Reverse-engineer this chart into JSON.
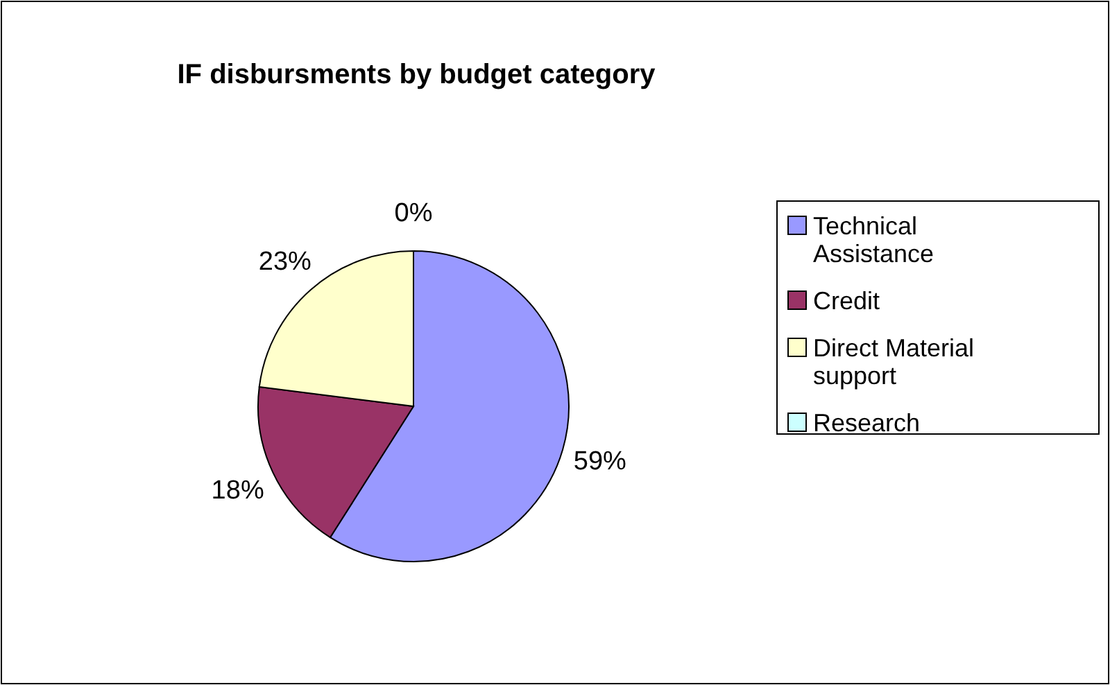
{
  "chart_data": {
    "type": "pie",
    "title": "IF disbursments by budget category",
    "categories": [
      "Technical Assistance",
      "Credit",
      "Direct Material support",
      "Research"
    ],
    "values": [
      59,
      18,
      23,
      0
    ],
    "colors": [
      "#9999ff",
      "#993366",
      "#ffffcc",
      "#ccffff"
    ],
    "value_labels": [
      "59%",
      "18%",
      "23%",
      "0%"
    ],
    "legend": "right"
  }
}
